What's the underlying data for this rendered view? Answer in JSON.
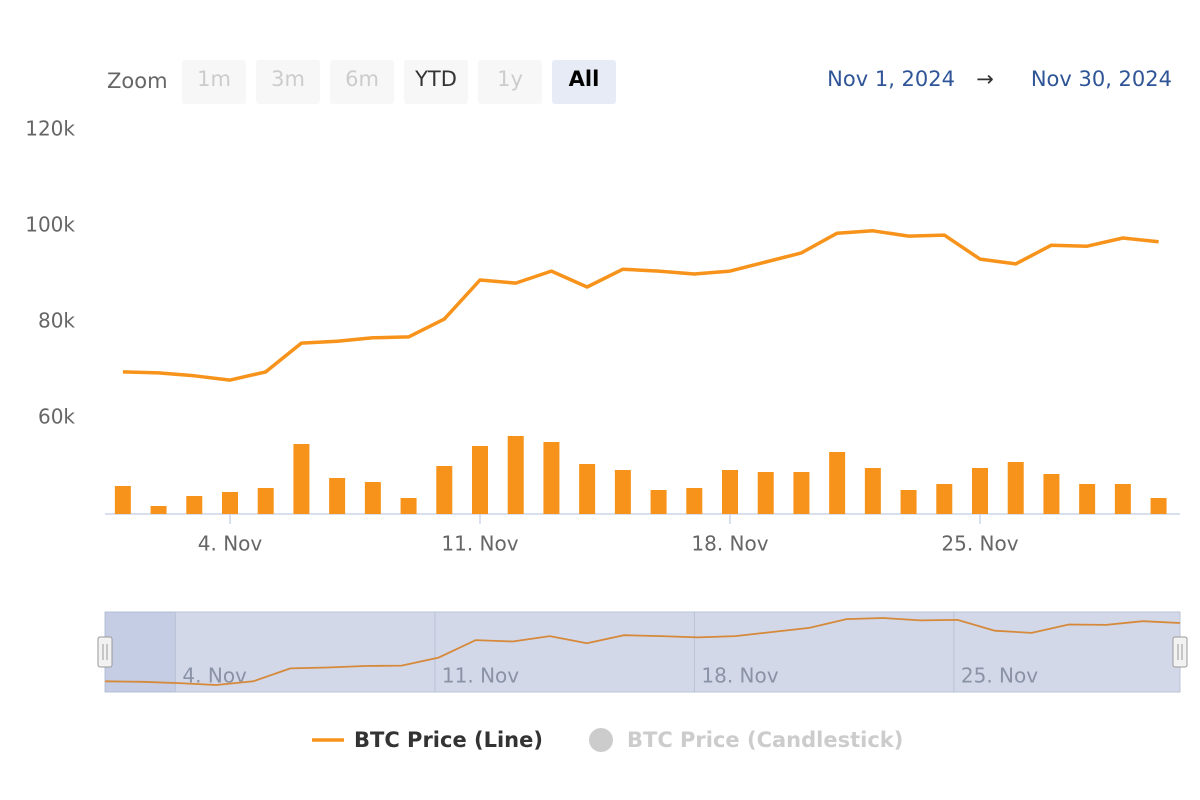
{
  "chart_data": {
    "type": "line",
    "range_selector": {
      "label": "Zoom",
      "buttons": [
        {
          "text": "1m",
          "state": "disabled"
        },
        {
          "text": "3m",
          "state": "disabled"
        },
        {
          "text": "6m",
          "state": "disabled"
        },
        {
          "text": "YTD",
          "state": "normal"
        },
        {
          "text": "1y",
          "state": "disabled"
        },
        {
          "text": "All",
          "state": "selected"
        }
      ],
      "from": "Nov 1, 2024",
      "arrow": "→",
      "to": "Nov 30, 2024"
    },
    "x": [
      1,
      2,
      3,
      4,
      5,
      6,
      7,
      8,
      9,
      10,
      11,
      12,
      13,
      14,
      15,
      16,
      17,
      18,
      19,
      20,
      21,
      22,
      23,
      24,
      25,
      26,
      27,
      28,
      29,
      30
    ],
    "xlim": [
      0.5,
      30.6
    ],
    "xticks": [
      {
        "value": 4,
        "label": "4. Nov"
      },
      {
        "value": 11,
        "label": "11. Nov"
      },
      {
        "value": 18,
        "label": "18. Nov"
      },
      {
        "value": 25,
        "label": "25. Nov"
      }
    ],
    "ylim": [
      40000,
      120000
    ],
    "yticks": [
      {
        "value": 60000,
        "label": "60k"
      },
      {
        "value": 80000,
        "label": "80k"
      },
      {
        "value": 100000,
        "label": "100k"
      },
      {
        "value": 120000,
        "label": "120k"
      }
    ],
    "y2lim": [
      0,
      100
    ],
    "grid": false,
    "series": [
      {
        "name": "BTC Price (Line)",
        "type": "line",
        "color": "#f7931a",
        "visible": true,
        "values": [
          69600,
          69400,
          68800,
          67900,
          69600,
          75600,
          76000,
          76700,
          76900,
          80600,
          88750,
          88100,
          90600,
          87300,
          91000,
          90600,
          90000,
          90600,
          92500,
          94400,
          98500,
          99000,
          97900,
          98100,
          93100,
          92100,
          96000,
          95800,
          97500,
          96700
        ]
      },
      {
        "type": "column",
        "axis": "y2",
        "color": "#f7931a",
        "visible": true,
        "values": [
          28,
          8,
          18,
          22,
          26,
          70,
          36,
          32,
          16,
          48,
          68,
          78,
          72,
          50,
          44,
          24,
          26,
          44,
          42,
          42,
          62,
          46,
          24,
          30,
          46,
          52,
          40,
          30,
          30,
          16
        ]
      },
      {
        "name": "BTC Price (Candlestick)",
        "type": "candlestick",
        "color": "#cccccc",
        "visible": false
      }
    ]
  }
}
